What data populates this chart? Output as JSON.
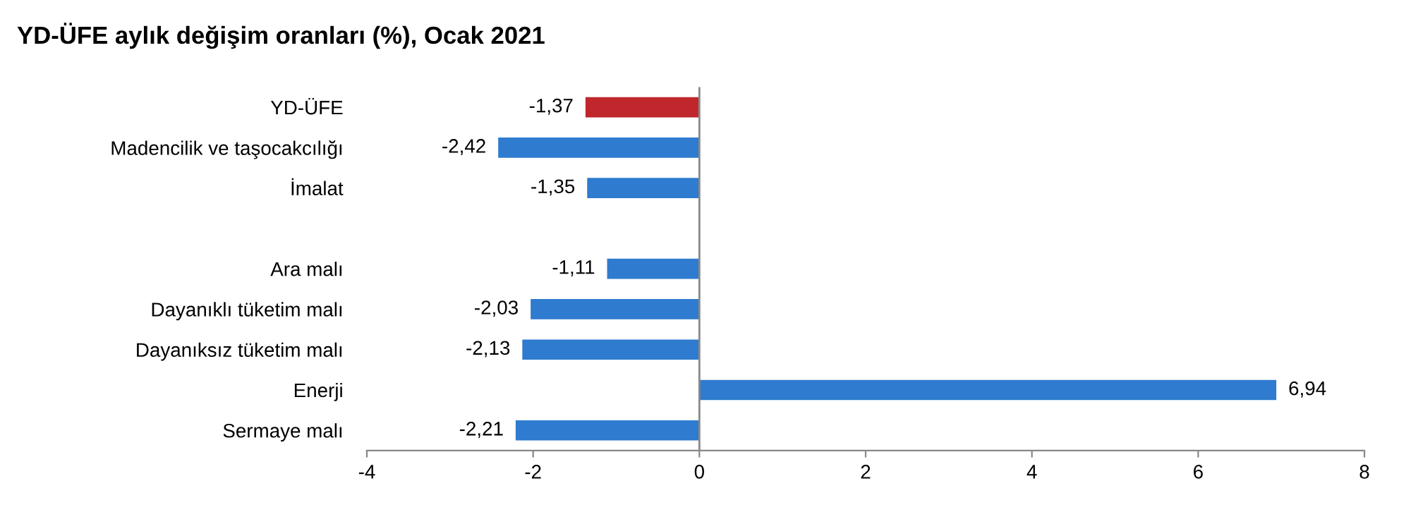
{
  "chart_data": {
    "type": "bar",
    "orientation": "horizontal",
    "title": "YD-ÜFE aylık değişim oranları (%), Ocak 2021",
    "categories": [
      "YD-ÜFE",
      "Madencilik ve taşocakcılığı",
      "İmalat",
      null,
      "Ara malı",
      "Dayanıklı tüketim malı",
      "Dayanıksız tüketim malı",
      "Enerji",
      "Sermaye malı"
    ],
    "values": [
      -1.37,
      -2.42,
      -1.35,
      null,
      -1.11,
      -2.03,
      -2.13,
      6.94,
      -2.21
    ],
    "value_labels": [
      "-1,37",
      "-2,42",
      "-1,35",
      null,
      "-1,11",
      "-2,03",
      "-2,13",
      "6,94",
      "-2,21"
    ],
    "colors": [
      "#c0272d",
      "#2e7bcf",
      "#2e7bcf",
      null,
      "#2e7bcf",
      "#2e7bcf",
      "#2e7bcf",
      "#2e7bcf",
      "#2e7bcf"
    ],
    "xlim": [
      -4,
      8
    ],
    "xticks": [
      -4,
      -2,
      0,
      2,
      4,
      6,
      8
    ],
    "ref_lines": [
      {
        "axis": "x",
        "value": 0,
        "color": "#888888"
      }
    ],
    "grid": false,
    "legend": false
  }
}
